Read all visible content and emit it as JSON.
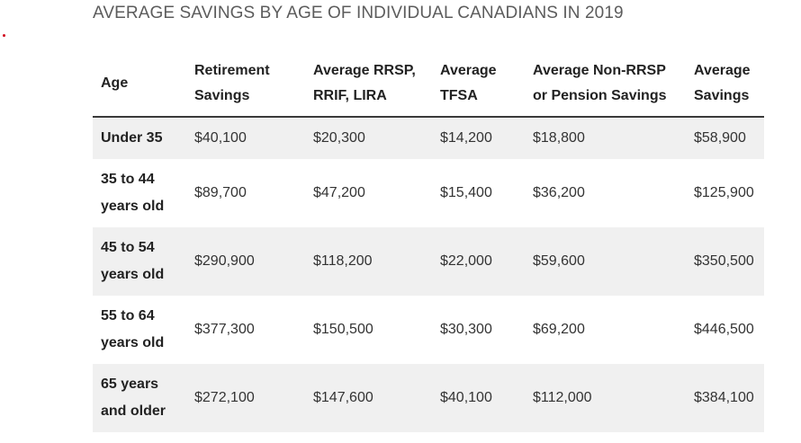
{
  "title": "AVERAGE SAVINGS BY AGE OF INDIVIDUAL CANADIANS IN 2019",
  "colors": {
    "title": "#5c5c5c",
    "row_stripe": "#f0f0f0",
    "header_rule": "#3a3a3a",
    "dot": "#d0021b"
  },
  "table": {
    "headers": [
      [
        "Age"
      ],
      [
        "Retirement",
        "Savings"
      ],
      [
        "Average RRSP,",
        "RRIF, LIRA"
      ],
      [
        "Average",
        "TFSA"
      ],
      [
        "Average Non-RRSP",
        "or Pension Savings"
      ],
      [
        "Average",
        "Savings"
      ]
    ],
    "rows": [
      {
        "age": [
          "Under 35"
        ],
        "retirement": "$40,100",
        "rrsp": "$20,300",
        "tfsa": "$14,200",
        "non_rrsp": "$18,800",
        "average": "$58,900"
      },
      {
        "age": [
          "35 to 44",
          "years old"
        ],
        "retirement": "$89,700",
        "rrsp": "$47,200",
        "tfsa": "$15,400",
        "non_rrsp": "$36,200",
        "average": "$125,900"
      },
      {
        "age": [
          "45 to 54",
          "years old"
        ],
        "retirement": "$290,900",
        "rrsp": "$118,200",
        "tfsa": "$22,000",
        "non_rrsp": "$59,600",
        "average": "$350,500"
      },
      {
        "age": [
          "55 to 64",
          "years old"
        ],
        "retirement": "$377,300",
        "rrsp": "$150,500",
        "tfsa": "$30,300",
        "non_rrsp": "$69,200",
        "average": "$446,500"
      },
      {
        "age": [
          "65 years",
          "and older"
        ],
        "retirement": "$272,100",
        "rrsp": "$147,600",
        "tfsa": "$40,100",
        "non_rrsp": "$112,000",
        "average": "$384,100"
      }
    ]
  }
}
